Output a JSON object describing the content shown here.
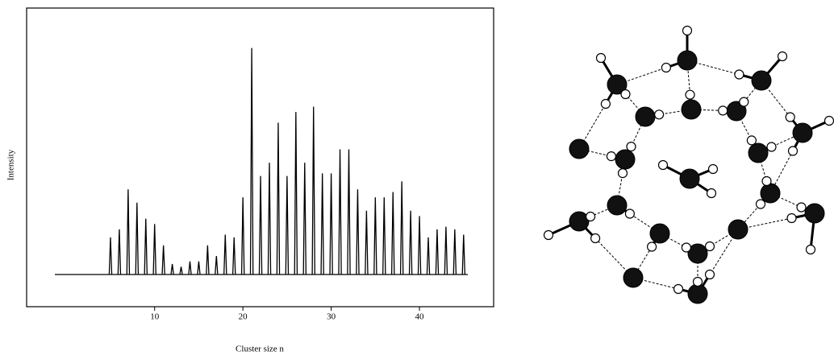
{
  "chart_data": {
    "type": "spectrum",
    "x_label": "Cluster size n",
    "y_label": "Intensity",
    "x": [
      5,
      6,
      7,
      8,
      9,
      10,
      11,
      12,
      13,
      14,
      15,
      16,
      17,
      18,
      19,
      20,
      21,
      22,
      23,
      24,
      25,
      26,
      27,
      28,
      29,
      30,
      31,
      32,
      33,
      34,
      35,
      36,
      37,
      38,
      39,
      40,
      41,
      42,
      43,
      44,
      45
    ],
    "values": [
      14,
      17,
      32,
      27,
      21,
      19,
      11,
      4,
      3,
      5,
      5,
      11,
      7,
      15,
      14,
      29,
      85,
      37,
      42,
      57,
      37,
      61,
      42,
      63,
      38,
      38,
      47,
      47,
      32,
      24,
      29,
      29,
      31,
      35,
      24,
      22,
      14,
      17,
      18,
      17,
      15
    ],
    "color": "#000000",
    "xlim": [
      -4.5,
      48.4
    ],
    "ylim": [
      -12,
      100
    ],
    "xticks": [
      10,
      20,
      30,
      40
    ]
  }
}
